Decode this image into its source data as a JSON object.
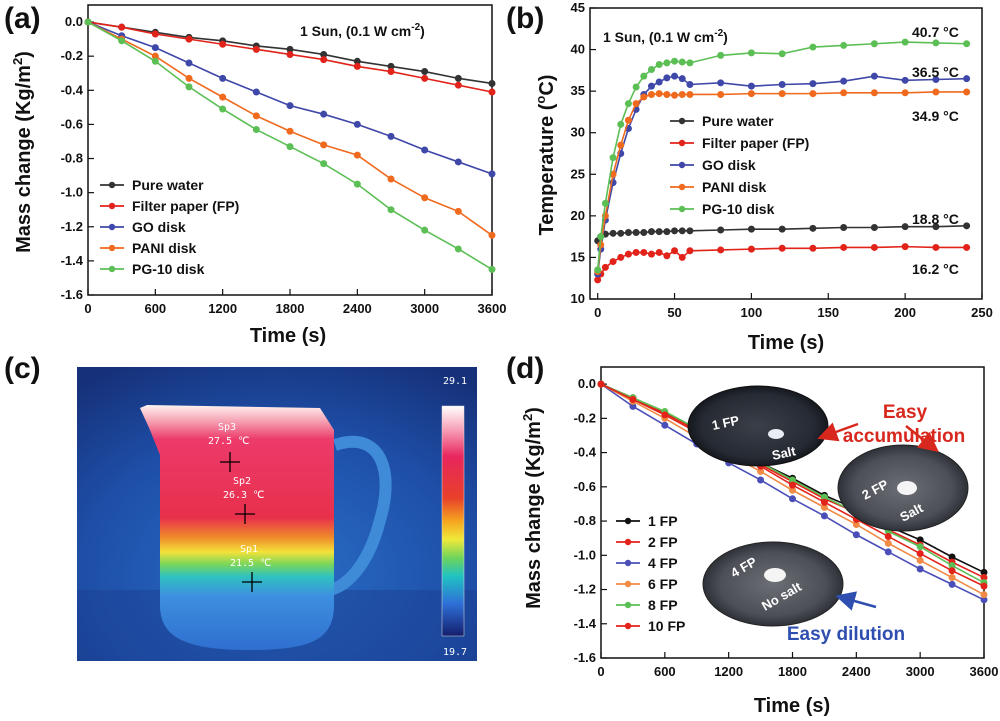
{
  "panel_labels": [
    "(a)",
    "(b)",
    "(c)",
    "(d)"
  ],
  "colors": {
    "pure_water": "#333333",
    "filter_paper": "#e2231a",
    "go_disk": "#3f48a8",
    "pani_disk": "#f06a1e",
    "pg10_disk": "#5cbf55",
    "fp_1": "#111111",
    "fp_2": "#e2231a",
    "fp_4": "#4a4fb8",
    "fp_6": "#f08a45",
    "fp_8": "#5cbf55",
    "fp_10": "#e2231a"
  },
  "thermal": {
    "scale_max": "29.1",
    "scale_min": "19.7",
    "spots": [
      {
        "name": "Sp3",
        "value": "27.5 ℃"
      },
      {
        "name": "Sp2",
        "value": "26.3 ℃"
      },
      {
        "name": "Sp1",
        "value": "21.5 ℃"
      }
    ]
  },
  "photo_labels": {
    "fp1_label": "1 FP",
    "fp1_salt": "Salt",
    "fp2_label": "2 FP",
    "fp2_salt": "Salt",
    "fp4_label": "4 FP",
    "fp4_salt": "No salt",
    "easy_accumulation_line1": "Easy",
    "easy_accumulation_line2": "accumulation",
    "easy_dilution": "Easy dilution"
  },
  "chart_data": [
    {
      "type": "line",
      "panel": "(a)",
      "annotation": "1 Sun, (0.1 W cm",
      "annotation_sup": "-2",
      "annotation_end": ")",
      "xlabel": "Time (s)",
      "ylabel": "Mass change (Kg/m",
      "ylabel_sup": "2",
      "ylabel_end": ")",
      "xlim": [
        0,
        3600
      ],
      "ylim": [
        -1.6,
        0.1
      ],
      "xticks": [
        0,
        600,
        1200,
        1800,
        2400,
        3000,
        3600
      ],
      "xtick_labels": [
        "0",
        "600",
        "1200",
        "1800",
        "2400",
        "3000",
        "3600"
      ],
      "yticks": [
        0.0,
        -0.2,
        -0.4,
        -0.6,
        -0.8,
        -1.0,
        -1.2,
        -1.4,
        -1.6
      ],
      "ytick_labels": [
        "0.0",
        "-0.2",
        "-0.4",
        "-0.6",
        "-0.8",
        "-1.0",
        "-1.2",
        "-1.4",
        "-1.6"
      ],
      "legend_position": "lower-left",
      "x": [
        0,
        300,
        600,
        900,
        1200,
        1500,
        1800,
        2100,
        2400,
        2700,
        3000,
        3300,
        3600
      ],
      "series": [
        {
          "name": "Pure water",
          "color_key": "pure_water",
          "values": [
            0,
            -0.03,
            -0.06,
            -0.09,
            -0.11,
            -0.14,
            -0.16,
            -0.19,
            -0.23,
            -0.26,
            -0.29,
            -0.33,
            -0.36
          ]
        },
        {
          "name": "Filter paper (FP)",
          "color_key": "filter_paper",
          "values": [
            0,
            -0.03,
            -0.07,
            -0.1,
            -0.13,
            -0.16,
            -0.19,
            -0.22,
            -0.26,
            -0.29,
            -0.33,
            -0.37,
            -0.41
          ]
        },
        {
          "name": "GO disk",
          "color_key": "go_disk",
          "values": [
            0,
            -0.08,
            -0.15,
            -0.24,
            -0.33,
            -0.41,
            -0.49,
            -0.54,
            -0.6,
            -0.67,
            -0.75,
            -0.82,
            -0.89
          ]
        },
        {
          "name": "PANI disk",
          "color_key": "pani_disk",
          "values": [
            0,
            -0.1,
            -0.2,
            -0.33,
            -0.44,
            -0.55,
            -0.64,
            -0.72,
            -0.78,
            -0.92,
            -1.03,
            -1.11,
            -1.25
          ]
        },
        {
          "name": "PG-10 disk",
          "color_key": "pg10_disk",
          "values": [
            0,
            -0.11,
            -0.23,
            -0.38,
            -0.51,
            -0.63,
            -0.73,
            -0.83,
            -0.95,
            -1.1,
            -1.22,
            -1.33,
            -1.45
          ]
        }
      ]
    },
    {
      "type": "line",
      "panel": "(b)",
      "annotation": "1 Sun, (0.1 W cm",
      "annotation_sup": "-2",
      "annotation_end": ")",
      "xlabel": "Time (s)",
      "ylabel": "Temperature (",
      "ylabel_sup": "o",
      "ylabel_end": "C)",
      "xlim": [
        -5,
        250
      ],
      "ylim": [
        10,
        45
      ],
      "xticks": [
        0,
        50,
        100,
        150,
        200,
        250
      ],
      "xtick_labels": [
        "0",
        "50",
        "100",
        "150",
        "200",
        "250"
      ],
      "yticks": [
        10,
        15,
        20,
        25,
        30,
        35,
        40,
        45
      ],
      "ytick_labels": [
        "10",
        "15",
        "20",
        "25",
        "30",
        "35",
        "40",
        "45"
      ],
      "legend_position": "center-right",
      "end_labels": [
        "40.7 °C",
        "36.5 °C",
        "34.9 °C",
        "18.8 °C",
        "16.2 °C"
      ],
      "x": [
        0,
        2,
        5,
        10,
        15,
        20,
        25,
        30,
        35,
        40,
        45,
        50,
        55,
        60,
        80,
        100,
        120,
        140,
        160,
        180,
        200,
        220,
        240
      ],
      "series": [
        {
          "name": "Pure water",
          "color_key": "pure_water",
          "values": [
            17.0,
            17.5,
            17.8,
            17.9,
            17.9,
            18.0,
            18.0,
            18.0,
            18.1,
            18.1,
            18.1,
            18.2,
            18.2,
            18.2,
            18.3,
            18.4,
            18.4,
            18.5,
            18.6,
            18.6,
            18.7,
            18.7,
            18.8
          ]
        },
        {
          "name": "Filter paper (FP)",
          "color_key": "filter_paper",
          "values": [
            12.3,
            13.0,
            13.8,
            14.5,
            15.0,
            15.4,
            15.6,
            15.6,
            15.4,
            15.6,
            15.2,
            15.8,
            15.0,
            15.8,
            15.9,
            16.0,
            16.1,
            16.1,
            16.2,
            16.2,
            16.3,
            16.2,
            16.2
          ]
        },
        {
          "name": "GO disk",
          "color_key": "go_disk",
          "values": [
            13.0,
            16.0,
            19.5,
            24.0,
            27.5,
            30.5,
            32.8,
            34.6,
            35.6,
            36.1,
            36.6,
            36.8,
            36.5,
            35.8,
            36.0,
            35.6,
            35.8,
            35.9,
            36.2,
            36.8,
            36.3,
            36.4,
            36.5
          ]
        },
        {
          "name": "PANI disk",
          "color_key": "pani_disk",
          "values": [
            13.3,
            16.5,
            20.0,
            25.0,
            28.5,
            31.5,
            33.5,
            34.3,
            34.6,
            34.7,
            34.6,
            34.5,
            34.6,
            34.6,
            34.6,
            34.7,
            34.7,
            34.7,
            34.8,
            34.8,
            34.8,
            34.9,
            34.9
          ]
        },
        {
          "name": "PG-10 disk",
          "color_key": "pg10_disk",
          "values": [
            13.5,
            17.5,
            21.5,
            27.0,
            31.0,
            33.5,
            35.5,
            36.8,
            37.6,
            38.2,
            38.4,
            38.6,
            38.5,
            38.4,
            39.3,
            39.6,
            39.5,
            40.3,
            40.5,
            40.7,
            40.9,
            40.8,
            40.7
          ]
        }
      ]
    },
    {
      "type": "line",
      "panel": "(d)",
      "xlabel": "Time (s)",
      "ylabel": "Mass change (Kg/m",
      "ylabel_sup": "2",
      "ylabel_end": ")",
      "xlim": [
        0,
        3600
      ],
      "ylim": [
        -1.6,
        0.1
      ],
      "xticks": [
        0,
        600,
        1200,
        1800,
        2400,
        3000,
        3600
      ],
      "xtick_labels": [
        "0",
        "600",
        "1200",
        "1800",
        "2400",
        "3000",
        "3600"
      ],
      "yticks": [
        0.0,
        -0.2,
        -0.4,
        -0.6,
        -0.8,
        -1.0,
        -1.2,
        -1.4,
        -1.6
      ],
      "ytick_labels": [
        "0.0",
        "-0.2",
        "-0.4",
        "-0.6",
        "-0.8",
        "-1.0",
        "-1.2",
        "-1.4",
        "-1.6"
      ],
      "legend_position": "lower-left",
      "x": [
        0,
        300,
        600,
        900,
        1200,
        1500,
        1800,
        2100,
        2400,
        2700,
        3000,
        3300,
        3600
      ],
      "series": [
        {
          "name": "1 FP",
          "color_key": "fp_1",
          "values": [
            0,
            -0.08,
            -0.17,
            -0.26,
            -0.36,
            -0.46,
            -0.55,
            -0.65,
            -0.73,
            -0.83,
            -0.91,
            -1.01,
            -1.1
          ]
        },
        {
          "name": "2 FP",
          "color_key": "fp_2",
          "values": [
            0,
            -0.08,
            -0.17,
            -0.27,
            -0.37,
            -0.47,
            -0.57,
            -0.67,
            -0.75,
            -0.85,
            -0.94,
            -1.04,
            -1.13
          ]
        },
        {
          "name": "4 FP",
          "color_key": "fp_4",
          "values": [
            0,
            -0.13,
            -0.24,
            -0.35,
            -0.46,
            -0.56,
            -0.67,
            -0.77,
            -0.88,
            -0.98,
            -1.08,
            -1.17,
            -1.26
          ]
        },
        {
          "name": "6 FP",
          "color_key": "fp_6",
          "values": [
            0,
            -0.1,
            -0.2,
            -0.31,
            -0.41,
            -0.51,
            -0.62,
            -0.72,
            -0.82,
            -0.93,
            -1.03,
            -1.13,
            -1.23
          ]
        },
        {
          "name": "8 FP",
          "color_key": "fp_8",
          "values": [
            0,
            -0.08,
            -0.16,
            -0.26,
            -0.36,
            -0.46,
            -0.56,
            -0.66,
            -0.75,
            -0.86,
            -0.95,
            -1.06,
            -1.16
          ]
        },
        {
          "name": "10 FP",
          "color_key": "fp_10",
          "values": [
            0,
            -0.09,
            -0.18,
            -0.28,
            -0.38,
            -0.48,
            -0.59,
            -0.69,
            -0.79,
            -0.89,
            -0.99,
            -1.09,
            -1.18
          ]
        }
      ]
    }
  ]
}
